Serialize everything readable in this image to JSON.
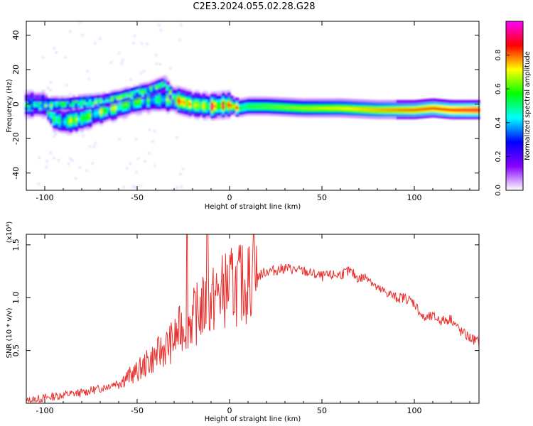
{
  "title": "C2E3.2024.055.02.28.G28",
  "colors": {
    "snr_line": "#e8312e",
    "frame": "#000000"
  },
  "chart_data": [
    {
      "type": "heatmap",
      "title": "C2E3.2024.055.02.28.G28",
      "xlabel": "Height of straight line (km)",
      "ylabel": "Frequency (Hz)",
      "xlim": [
        -110,
        135
      ],
      "ylim": [
        -50,
        48
      ],
      "xticks": [
        "-100",
        "-50",
        "0",
        "50",
        "100"
      ],
      "yticks": [
        "-40",
        "-20",
        "0",
        "20",
        "40"
      ],
      "colorbar": {
        "label": "Normalized spectral amplitude",
        "range": [
          0,
          1
        ],
        "ticks": [
          "0.0",
          "0.2",
          "0.4",
          "0.6",
          "0.8"
        ],
        "colormap": [
          "#ffffff",
          "#8800ff",
          "#0000ff",
          "#00ffff",
          "#00ff00",
          "#ffff00",
          "#ff0000",
          "#ff00ff"
        ]
      },
      "ridge": {
        "description_points": [
          [
            -110,
            0
          ],
          [
            -100,
            0
          ],
          [
            -95,
            -8
          ],
          [
            -90,
            -10
          ],
          [
            -80,
            -8
          ],
          [
            -70,
            -4
          ],
          [
            -60,
            -1
          ],
          [
            -50,
            2
          ],
          [
            -40,
            3
          ],
          [
            -30,
            3
          ],
          [
            -20,
            0
          ],
          [
            -10,
            -1
          ],
          [
            0,
            0
          ],
          [
            5,
            -2
          ],
          [
            10,
            -1
          ],
          [
            20,
            -1
          ],
          [
            40,
            -2
          ],
          [
            60,
            -2
          ],
          [
            80,
            -3
          ],
          [
            100,
            -3
          ],
          [
            110,
            -2
          ],
          [
            120,
            -3
          ],
          [
            135,
            -3
          ]
        ],
        "upper_branch": [
          [
            -110,
            0
          ],
          [
            -90,
            0
          ],
          [
            -80,
            1
          ],
          [
            -70,
            2
          ],
          [
            -60,
            4
          ],
          [
            -50,
            7
          ],
          [
            -45,
            8
          ],
          [
            -40,
            10
          ],
          [
            -35,
            12
          ],
          [
            -30,
            4
          ]
        ]
      }
    },
    {
      "type": "line",
      "xlabel": "Height of straight line (km)",
      "ylabel": "SNR (10 * v/v)",
      "y_multiplier": "(x10⁴)",
      "xlim": [
        -110,
        135
      ],
      "ylim": [
        0,
        1.6
      ],
      "xticks": [
        "-100",
        "-50",
        "0",
        "50",
        "100"
      ],
      "yticks": [
        "0.5",
        "1.0",
        "1.5"
      ],
      "series": [
        {
          "x": [
            -110,
            -100,
            -90,
            -80,
            -70,
            -60,
            -50,
            -40,
            -30,
            -25,
            -20,
            -15,
            -10,
            -5,
            0,
            5,
            10,
            15,
            20,
            25,
            30,
            40,
            50,
            60,
            65,
            70,
            75,
            80,
            85,
            90,
            95,
            100,
            105,
            110,
            115,
            120,
            125,
            130,
            135
          ],
          "y": [
            0.02,
            0.05,
            0.08,
            0.1,
            0.14,
            0.2,
            0.3,
            0.45,
            0.6,
            0.75,
            0.8,
            0.9,
            0.95,
            1.05,
            1.1,
            1.12,
            1.15,
            1.2,
            1.25,
            1.26,
            1.28,
            1.25,
            1.2,
            1.22,
            1.25,
            1.18,
            1.2,
            1.08,
            1.05,
            1.0,
            1.0,
            0.95,
            0.8,
            0.82,
            0.78,
            0.8,
            0.68,
            0.62,
            0.58
          ]
        }
      ],
      "spikes": [
        [
          -23,
          1.6
        ],
        [
          -12,
          1.6
        ],
        [
          13,
          1.6
        ]
      ]
    }
  ]
}
